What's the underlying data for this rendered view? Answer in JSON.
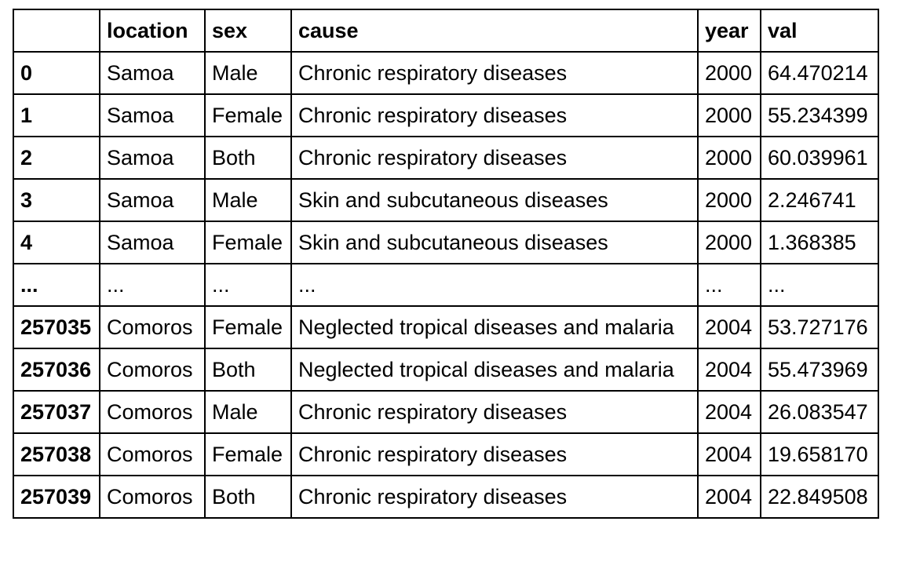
{
  "table": {
    "columns": [
      "",
      "location",
      "sex",
      "cause",
      "year",
      "val"
    ],
    "rows": [
      {
        "index": "0",
        "location": "Samoa",
        "sex": "Male",
        "cause": "Chronic respiratory diseases",
        "year": "2000",
        "val": "64.470214"
      },
      {
        "index": "1",
        "location": "Samoa",
        "sex": "Female",
        "cause": "Chronic respiratory diseases",
        "year": "2000",
        "val": "55.234399"
      },
      {
        "index": "2",
        "location": "Samoa",
        "sex": "Both",
        "cause": "Chronic respiratory diseases",
        "year": "2000",
        "val": "60.039961"
      },
      {
        "index": "3",
        "location": "Samoa",
        "sex": "Male",
        "cause": "Skin and subcutaneous diseases",
        "year": "2000",
        "val": "2.246741"
      },
      {
        "index": "4",
        "location": "Samoa",
        "sex": "Female",
        "cause": "Skin and subcutaneous diseases",
        "year": "2000",
        "val": "1.368385"
      },
      {
        "index": "...",
        "location": "...",
        "sex": "...",
        "cause": "...",
        "year": "...",
        "val": "..."
      },
      {
        "index": "257035",
        "location": "Comoros",
        "sex": "Female",
        "cause": "Neglected tropical diseases and malaria",
        "year": "2004",
        "val": "53.727176"
      },
      {
        "index": "257036",
        "location": "Comoros",
        "sex": "Both",
        "cause": "Neglected tropical diseases and malaria",
        "year": "2004",
        "val": "55.473969"
      },
      {
        "index": "257037",
        "location": "Comoros",
        "sex": "Male",
        "cause": "Chronic respiratory diseases",
        "year": "2004",
        "val": "26.083547"
      },
      {
        "index": "257038",
        "location": "Comoros",
        "sex": "Female",
        "cause": "Chronic respiratory diseases",
        "year": "2004",
        "val": "19.658170"
      },
      {
        "index": "257039",
        "location": "Comoros",
        "sex": "Both",
        "cause": "Chronic respiratory diseases",
        "year": "2004",
        "val": "22.849508"
      }
    ]
  }
}
